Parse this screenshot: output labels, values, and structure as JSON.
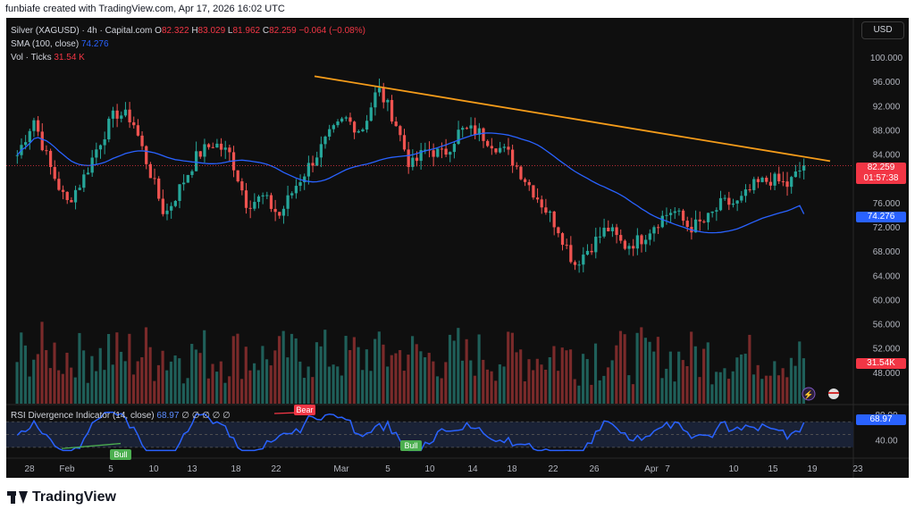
{
  "header": {
    "text": "funbiafe created with TradingView.com, Apr 17, 2026 16:02 UTC"
  },
  "legend": {
    "symbol": "Silver (XAGUSD) · 4h · Capital.com",
    "o_label": "O",
    "o_value": "82.322",
    "h_label": "H",
    "h_value": "83.029",
    "l_label": "L",
    "l_value": "81.962",
    "c_label": "C",
    "c_value": "82.259",
    "change": "−0.064 (−0.08%)",
    "sma_label": "SMA (100, close)",
    "sma_value": "74.276",
    "vol_label": "Vol · Ticks",
    "vol_value": "31.54 K"
  },
  "rsi_legend": {
    "label": "RSI Divergence Indicator (14, close)",
    "value": "68.97",
    "extras": "∅ ∅ ∅ ∅ ∅"
  },
  "currency_button": "USD",
  "badges": {
    "price": "82.259",
    "countdown": "01:57:38",
    "sma": "74.276",
    "volume": "31.54K",
    "rsi": "68.97"
  },
  "colors": {
    "up": "#26a69a",
    "down": "#ef5350",
    "sma": "#2962ff",
    "trend": "#f59c1a",
    "rsi": "#2962ff"
  },
  "icons": {
    "event": "lightning-icon",
    "flag": "us-flag-icon"
  },
  "footer": {
    "brand": "TradingView"
  },
  "chart_data": {
    "type": "candlestick",
    "symbol": "Silver (XAGUSD)",
    "timeframe": "4h",
    "price_axis": {
      "ticks": [
        "100.000",
        "96.000",
        "92.000",
        "88.000",
        "84.000",
        "80.000",
        "76.000",
        "72.000",
        "68.000",
        "64.000",
        "60.000",
        "56.000",
        "52.000",
        "48.000"
      ],
      "min": 44,
      "max": 100
    },
    "time_axis": {
      "ticks": [
        "28",
        "Feb",
        "5",
        "10",
        "13",
        "18",
        "22",
        "Mar",
        "5",
        "10",
        "14",
        "18",
        "22",
        "26",
        "Apr",
        "7",
        "10",
        "15",
        "19",
        "23"
      ]
    },
    "close_path": [
      [
        "Jan 28",
        84
      ],
      [
        "Jan 29",
        90
      ],
      [
        "Jan 30",
        82
      ],
      [
        "Feb 1",
        76
      ],
      [
        "Feb 2",
        80
      ],
      [
        "Feb 3",
        86
      ],
      [
        "Feb 4",
        91
      ],
      [
        "Feb 5",
        90
      ],
      [
        "Feb 6",
        82
      ],
      [
        "Feb 7",
        74
      ],
      [
        "Feb 8",
        79
      ],
      [
        "Feb 10",
        84
      ],
      [
        "Feb 12",
        86
      ],
      [
        "Feb 13",
        84
      ],
      [
        "Feb 15",
        76
      ],
      [
        "Feb 17",
        77
      ],
      [
        "Feb 19",
        74
      ],
      [
        "Feb 21",
        79
      ],
      [
        "Feb 22",
        83
      ],
      [
        "Feb 24",
        87
      ],
      [
        "Feb 26",
        90
      ],
      [
        "Feb 28",
        88
      ],
      [
        "Mar 1",
        95
      ],
      [
        "Mar 2",
        90
      ],
      [
        "Mar 3",
        82
      ],
      [
        "Mar 4",
        85
      ],
      [
        "Mar 6",
        84
      ],
      [
        "Mar 8",
        88
      ],
      [
        "Mar 10",
        88
      ],
      [
        "Mar 12",
        86
      ],
      [
        "Mar 14",
        84
      ],
      [
        "Mar 16",
        80
      ],
      [
        "Mar 18",
        76
      ],
      [
        "Mar 20",
        72
      ],
      [
        "Mar 22",
        66
      ],
      [
        "Mar 23",
        69
      ],
      [
        "Mar 25",
        72
      ],
      [
        "Mar 27",
        69
      ],
      [
        "Mar 30",
        70
      ],
      [
        "Apr 2",
        73
      ],
      [
        "Apr 4",
        75
      ],
      [
        "Apr 6",
        72
      ],
      [
        "Apr 8",
        73
      ],
      [
        "Apr 10",
        76
      ],
      [
        "Apr 12",
        76
      ],
      [
        "Apr 14",
        79
      ],
      [
        "Apr 15",
        80
      ],
      [
        "Apr 16",
        79
      ],
      [
        "Apr 17",
        82.259
      ]
    ],
    "sma": {
      "name": "SMA (100, close)",
      "last": 74.276
    },
    "trendline": {
      "from": [
        "Feb 28",
        97
      ],
      "to": [
        "Apr 19",
        83
      ]
    },
    "volume": {
      "name": "Vol · Ticks",
      "last": "31.54K"
    },
    "rsi": {
      "name": "RSI Divergence Indicator (14, close)",
      "last": 68.97,
      "ticks": [
        "80.00",
        "40.00"
      ],
      "annotations": [
        {
          "label": "Bull"
        },
        {
          "label": "Bear"
        },
        {
          "label": "Bull"
        }
      ]
    }
  }
}
